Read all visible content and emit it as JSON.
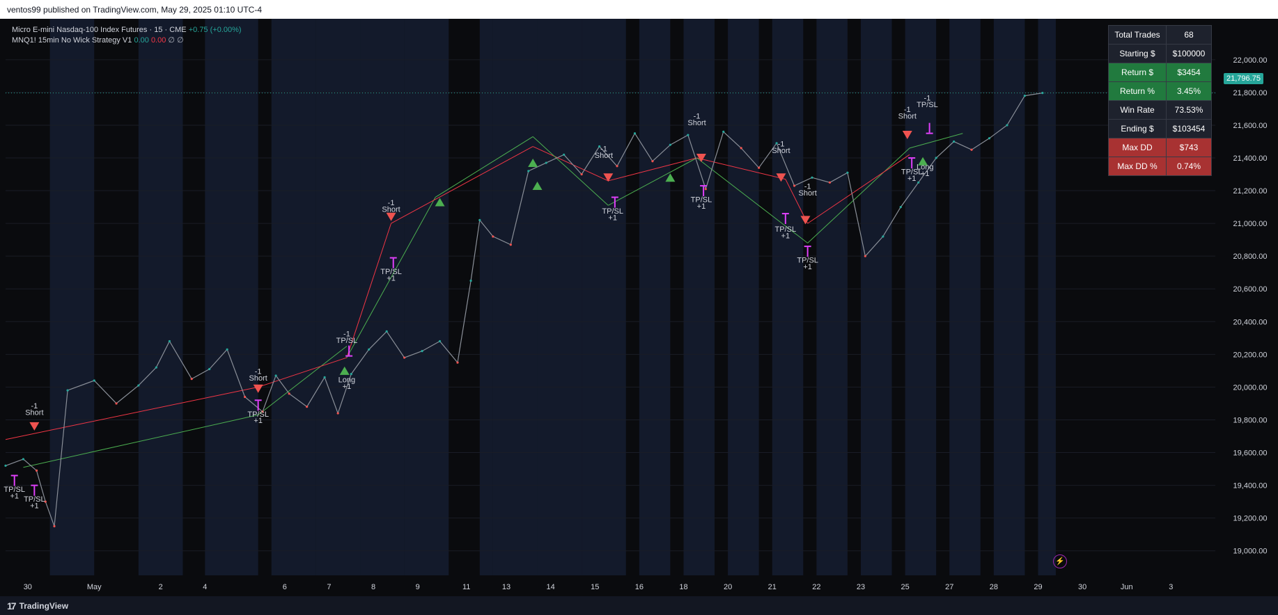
{
  "publish_line": "ventos99 published on TradingView.com, May 29, 2025 01:10 UTC-4",
  "legend": {
    "symbol": "Micro E-mini Nasdaq-100 Index Futures · 15 · CME",
    "change": "+0.75 (+0.00%)",
    "strategy": "MNQ1! 15min No Wick Strategy V1",
    "val1": "0.00",
    "val2": "0.00",
    "sym1": "∅",
    "sym2": "∅"
  },
  "price_badge": "21,796.75",
  "footer": {
    "brand": "TradingView",
    "logo": "17"
  },
  "flash_icon": "lightning-icon",
  "stats": [
    {
      "label": "Total Trades",
      "value": "68",
      "style": "dark"
    },
    {
      "label": "Starting $",
      "value": "$100000",
      "style": "dark"
    },
    {
      "label": "Return $",
      "value": "$3454",
      "style": "green"
    },
    {
      "label": "Return %",
      "value": "3.45%",
      "style": "green"
    },
    {
      "label": "Win Rate",
      "value": "73.53%",
      "style": "dark"
    },
    {
      "label": "Ending $",
      "value": "$103454",
      "style": "dark"
    },
    {
      "label": "Max DD",
      "value": "$743",
      "style": "red"
    },
    {
      "label": "Max DD %",
      "value": "0.74%",
      "style": "red"
    }
  ],
  "colors": {
    "background": "#0a0b0e",
    "session_band": "#131a2b",
    "grid": "#1a1d26",
    "up": "#26a69a",
    "down": "#ef5350",
    "long_line": "#4caf50",
    "short_line": "#f23645",
    "marker_magenta": "#e040fb",
    "axis_text": "#d1d4dc",
    "price_line": "#26a69a"
  },
  "chart_data": {
    "type": "line",
    "ylim": [
      18850,
      22250
    ],
    "yticks": [
      "22,000.00",
      "21,800.00",
      "21,600.00",
      "21,400.00",
      "21,200.00",
      "21,000.00",
      "20,800.00",
      "20,600.00",
      "20,400.00",
      "20,200.00",
      "20,000.00",
      "19,800.00",
      "19,600.00",
      "19,400.00",
      "19,200.00",
      "19,000.00"
    ],
    "ytick_values": [
      22000,
      21800,
      21600,
      21400,
      21200,
      21000,
      20800,
      20600,
      20400,
      20200,
      20000,
      19800,
      19600,
      19400,
      19200,
      19000
    ],
    "current_price": 21796.75,
    "x_labels": [
      {
        "label": "30",
        "x": 0.5
      },
      {
        "label": "May",
        "x": 2
      },
      {
        "label": "2",
        "x": 3.5
      },
      {
        "label": "4",
        "x": 4.5
      },
      {
        "label": "6",
        "x": 6.3
      },
      {
        "label": "7",
        "x": 7.3
      },
      {
        "label": "8",
        "x": 8.3
      },
      {
        "label": "9",
        "x": 9.3
      },
      {
        "label": "11",
        "x": 10.4
      },
      {
        "label": "13",
        "x": 11.3
      },
      {
        "label": "14",
        "x": 12.3
      },
      {
        "label": "15",
        "x": 13.3
      },
      {
        "label": "16",
        "x": 14.3
      },
      {
        "label": "18",
        "x": 15.3
      },
      {
        "label": "20",
        "x": 16.3
      },
      {
        "label": "21",
        "x": 17.3
      },
      {
        "label": "22",
        "x": 18.3
      },
      {
        "label": "23",
        "x": 19.3
      },
      {
        "label": "25",
        "x": 20.3
      },
      {
        "label": "27",
        "x": 21.3
      },
      {
        "label": "28",
        "x": 22.3
      },
      {
        "label": "29",
        "x": 23.3
      },
      {
        "label": "30",
        "x": 24.3
      },
      {
        "label": "Jun",
        "x": 25.3
      },
      {
        "label": "3",
        "x": 26.3
      }
    ],
    "xlim": [
      0,
      27.3
    ],
    "session_bands": [
      [
        1,
        2
      ],
      [
        3,
        4
      ],
      [
        4.5,
        5.7
      ],
      [
        6,
        7
      ],
      [
        7,
        8
      ],
      [
        8,
        9
      ],
      [
        9,
        10
      ],
      [
        10.7,
        11
      ],
      [
        11,
        12
      ],
      [
        12,
        13
      ],
      [
        13,
        14
      ],
      [
        14.3,
        15
      ],
      [
        15.3,
        16
      ],
      [
        16.3,
        17
      ],
      [
        17.3,
        18
      ],
      [
        18.3,
        19
      ],
      [
        19.3,
        20
      ],
      [
        20.3,
        21
      ],
      [
        21.3,
        22
      ],
      [
        22.3,
        23
      ],
      [
        23.3,
        23.7
      ]
    ],
    "price_series": {
      "name": "",
      "x": [
        0,
        0.4,
        0.7,
        0.9,
        1.1,
        1.4,
        2.0,
        2.5,
        3.0,
        3.4,
        3.7,
        4.2,
        4.6,
        5.0,
        5.4,
        5.8,
        6.1,
        6.4,
        6.8,
        7.2,
        7.5,
        7.8,
        8.2,
        8.6,
        9.0,
        9.4,
        9.8,
        10.2,
        10.5,
        10.7,
        11.0,
        11.4,
        11.8,
        12.2,
        12.6,
        13.0,
        13.4,
        13.8,
        14.2,
        14.6,
        15.0,
        15.4,
        15.8,
        16.2,
        16.6,
        17.0,
        17.4,
        17.8,
        18.2,
        18.6,
        19.0,
        19.4,
        19.8,
        20.2,
        20.6,
        21.0,
        21.4,
        21.8,
        22.2,
        22.6,
        23.0,
        23.4
      ],
      "values": [
        19520,
        19560,
        19490,
        19300,
        19150,
        19980,
        20040,
        19900,
        20010,
        20120,
        20280,
        20050,
        20110,
        20230,
        19940,
        19850,
        20070,
        19960,
        19880,
        20060,
        19840,
        20080,
        20230,
        20340,
        20180,
        20220,
        20280,
        20150,
        20650,
        21020,
        20920,
        20870,
        21320,
        21370,
        21420,
        21300,
        21470,
        21350,
        21550,
        21380,
        21480,
        21540,
        21210,
        21560,
        21460,
        21340,
        21490,
        21230,
        21280,
        21250,
        21310,
        20800,
        20920,
        21100,
        21250,
        21400,
        21500,
        21450,
        21520,
        21600,
        21780,
        21796.75
      ]
    },
    "trade_lines": [
      {
        "color": "long",
        "points": [
          [
            0.4,
            19510
          ],
          [
            5.7,
            19830
          ]
        ]
      },
      {
        "color": "short",
        "points": [
          [
            0,
            19680
          ],
          [
            5.7,
            20000
          ]
        ]
      },
      {
        "color": "long",
        "points": [
          [
            5.7,
            19830
          ],
          [
            7.7,
            20250
          ]
        ]
      },
      {
        "color": "short",
        "points": [
          [
            5.7,
            20000
          ],
          [
            7.7,
            20180
          ]
        ]
      },
      {
        "color": "short",
        "points": [
          [
            7.7,
            20180
          ],
          [
            8.7,
            21000
          ]
        ]
      },
      {
        "color": "long",
        "points": [
          [
            7.7,
            20180
          ],
          [
            9.7,
            21160
          ]
        ]
      },
      {
        "color": "long",
        "points": [
          [
            9.7,
            21160
          ],
          [
            11.9,
            21530
          ]
        ]
      },
      {
        "color": "short",
        "points": [
          [
            8.7,
            21000
          ],
          [
            11.9,
            21470
          ]
        ]
      },
      {
        "color": "short",
        "points": [
          [
            11.9,
            21470
          ],
          [
            13.6,
            21260
          ]
        ]
      },
      {
        "color": "long",
        "points": [
          [
            11.9,
            21530
          ],
          [
            13.6,
            21110
          ]
        ]
      },
      {
        "color": "long",
        "points": [
          [
            13.6,
            21110
          ],
          [
            15.6,
            21400
          ]
        ]
      },
      {
        "color": "short",
        "points": [
          [
            13.6,
            21260
          ],
          [
            15.6,
            21400
          ]
        ]
      },
      {
        "color": "short",
        "points": [
          [
            15.6,
            21400
          ],
          [
            17.6,
            21270
          ]
        ]
      },
      {
        "color": "short",
        "points": [
          [
            17.6,
            21270
          ],
          [
            18.1,
            21000
          ]
        ]
      },
      {
        "color": "long",
        "points": [
          [
            15.6,
            21400
          ],
          [
            18.1,
            20880
          ]
        ]
      },
      {
        "color": "long",
        "points": [
          [
            18.1,
            20880
          ],
          [
            20.4,
            21460
          ]
        ]
      },
      {
        "color": "short",
        "points": [
          [
            18.1,
            21000
          ],
          [
            20.4,
            21420
          ]
        ]
      },
      {
        "color": "long",
        "points": [
          [
            20.4,
            21460
          ],
          [
            21.6,
            21550
          ]
        ]
      }
    ],
    "annotations": [
      {
        "text": "-1",
        "x": 0.65,
        "y": 19870,
        "color": "#d1d4dc"
      },
      {
        "text": "Short",
        "x": 0.65,
        "y": 19830,
        "color": "#d1d4dc"
      },
      {
        "text": "TP/SL",
        "x": 0.2,
        "y": 19360,
        "color": "#d1d4dc"
      },
      {
        "text": "+1",
        "x": 0.2,
        "y": 19320,
        "color": "#d1d4dc"
      },
      {
        "text": "TP/SL",
        "x": 0.65,
        "y": 19300,
        "color": "#d1d4dc"
      },
      {
        "text": "+1",
        "x": 0.65,
        "y": 19260,
        "color": "#d1d4dc"
      },
      {
        "text": "-1",
        "x": 5.7,
        "y": 20080,
        "color": "#d1d4dc"
      },
      {
        "text": "Short",
        "x": 5.7,
        "y": 20040,
        "color": "#d1d4dc"
      },
      {
        "text": "TP/SL",
        "x": 5.7,
        "y": 19820,
        "color": "#d1d4dc"
      },
      {
        "text": "+1",
        "x": 5.7,
        "y": 19780,
        "color": "#d1d4dc"
      },
      {
        "text": "-1",
        "x": 7.7,
        "y": 20310,
        "color": "#d1d4dc"
      },
      {
        "text": "TP/SL",
        "x": 7.7,
        "y": 20270,
        "color": "#d1d4dc"
      },
      {
        "text": "Long",
        "x": 7.7,
        "y": 20030,
        "color": "#d1d4dc"
      },
      {
        "text": "+1",
        "x": 7.7,
        "y": 19990,
        "color": "#d1d4dc"
      },
      {
        "text": "-1",
        "x": 8.7,
        "y": 21110,
        "color": "#d1d4dc"
      },
      {
        "text": "Short",
        "x": 8.7,
        "y": 21070,
        "color": "#d1d4dc"
      },
      {
        "text": "TP/SL",
        "x": 8.7,
        "y": 20690,
        "color": "#d1d4dc"
      },
      {
        "text": "+1",
        "x": 8.7,
        "y": 20650,
        "color": "#d1d4dc"
      },
      {
        "text": "-1",
        "x": 13.5,
        "y": 21440,
        "color": "#d1d4dc"
      },
      {
        "text": "Short",
        "x": 13.5,
        "y": 21400,
        "color": "#d1d4dc"
      },
      {
        "text": "TP/SL",
        "x": 13.7,
        "y": 21060,
        "color": "#d1d4dc"
      },
      {
        "text": "+1",
        "x": 13.7,
        "y": 21020,
        "color": "#d1d4dc"
      },
      {
        "text": "-1",
        "x": 15.6,
        "y": 21640,
        "color": "#d1d4dc"
      },
      {
        "text": "Short",
        "x": 15.6,
        "y": 21600,
        "color": "#d1d4dc"
      },
      {
        "text": "TP/SL",
        "x": 15.7,
        "y": 21130,
        "color": "#d1d4dc"
      },
      {
        "text": "+1",
        "x": 15.7,
        "y": 21090,
        "color": "#d1d4dc"
      },
      {
        "text": "-1",
        "x": 17.5,
        "y": 21470,
        "color": "#d1d4dc"
      },
      {
        "text": "Short",
        "x": 17.5,
        "y": 21430,
        "color": "#d1d4dc"
      },
      {
        "text": "-1",
        "x": 18.1,
        "y": 21210,
        "color": "#d1d4dc"
      },
      {
        "text": "Short",
        "x": 18.1,
        "y": 21170,
        "color": "#d1d4dc"
      },
      {
        "text": "TP/SL",
        "x": 17.6,
        "y": 20950,
        "color": "#d1d4dc"
      },
      {
        "text": "+1",
        "x": 17.6,
        "y": 20910,
        "color": "#d1d4dc"
      },
      {
        "text": "TP/SL",
        "x": 18.1,
        "y": 20760,
        "color": "#d1d4dc"
      },
      {
        "text": "+1",
        "x": 18.1,
        "y": 20720,
        "color": "#d1d4dc"
      },
      {
        "text": "-1",
        "x": 20.35,
        "y": 21680,
        "color": "#d1d4dc"
      },
      {
        "text": "Short",
        "x": 20.35,
        "y": 21640,
        "color": "#d1d4dc"
      },
      {
        "text": "-1",
        "x": 20.8,
        "y": 21750,
        "color": "#d1d4dc"
      },
      {
        "text": "TP/SL",
        "x": 20.8,
        "y": 21710,
        "color": "#d1d4dc"
      },
      {
        "text": "TP/SL",
        "x": 20.45,
        "y": 21300,
        "color": "#d1d4dc"
      },
      {
        "text": "+1",
        "x": 20.45,
        "y": 21260,
        "color": "#d1d4dc"
      },
      {
        "text": "Long",
        "x": 20.75,
        "y": 21330,
        "color": "#d1d4dc"
      },
      {
        "text": "+1",
        "x": 20.75,
        "y": 21290,
        "color": "#d1d4dc"
      }
    ],
    "markers": [
      {
        "type": "tri-down",
        "x": 0.65,
        "y": 19760,
        "color": "#ef5350"
      },
      {
        "type": "arrow-up",
        "x": 0.2,
        "y": 19430,
        "color": "#e040fb"
      },
      {
        "type": "arrow-up",
        "x": 0.65,
        "y": 19370,
        "color": "#e040fb"
      },
      {
        "type": "tri-down",
        "x": 5.7,
        "y": 19990,
        "color": "#ef5350"
      },
      {
        "type": "arrow-up",
        "x": 5.7,
        "y": 19890,
        "color": "#e040fb"
      },
      {
        "type": "arrow-down",
        "x": 7.75,
        "y": 20220,
        "color": "#e040fb"
      },
      {
        "type": "tri-up",
        "x": 7.65,
        "y": 20100,
        "color": "#4caf50"
      },
      {
        "type": "tri-down",
        "x": 8.7,
        "y": 21040,
        "color": "#ef5350"
      },
      {
        "type": "arrow-up",
        "x": 8.75,
        "y": 20760,
        "color": "#e040fb"
      },
      {
        "type": "tri-up",
        "x": 9.8,
        "y": 21130,
        "color": "#4caf50"
      },
      {
        "type": "tri-up",
        "x": 11.9,
        "y": 21370,
        "color": "#4caf50"
      },
      {
        "type": "tri-up",
        "x": 12.0,
        "y": 21230,
        "color": "#4caf50"
      },
      {
        "type": "tri-down",
        "x": 13.6,
        "y": 21280,
        "color": "#ef5350"
      },
      {
        "type": "arrow-up",
        "x": 13.75,
        "y": 21130,
        "color": "#e040fb"
      },
      {
        "type": "tri-up",
        "x": 15.0,
        "y": 21280,
        "color": "#4caf50"
      },
      {
        "type": "tri-down",
        "x": 15.7,
        "y": 21400,
        "color": "#ef5350"
      },
      {
        "type": "arrow-up",
        "x": 15.75,
        "y": 21200,
        "color": "#e040fb"
      },
      {
        "type": "tri-down",
        "x": 17.5,
        "y": 21280,
        "color": "#ef5350"
      },
      {
        "type": "tri-down",
        "x": 18.05,
        "y": 21020,
        "color": "#ef5350"
      },
      {
        "type": "arrow-up",
        "x": 17.6,
        "y": 21030,
        "color": "#e040fb"
      },
      {
        "type": "arrow-up",
        "x": 18.1,
        "y": 20830,
        "color": "#e040fb"
      },
      {
        "type": "tri-down",
        "x": 20.35,
        "y": 21540,
        "color": "#ef5350"
      },
      {
        "type": "arrow-down",
        "x": 20.85,
        "y": 21580,
        "color": "#e040fb"
      },
      {
        "type": "arrow-up",
        "x": 20.45,
        "y": 21370,
        "color": "#e040fb"
      },
      {
        "type": "tri-up",
        "x": 20.7,
        "y": 21380,
        "color": "#4caf50"
      }
    ]
  }
}
